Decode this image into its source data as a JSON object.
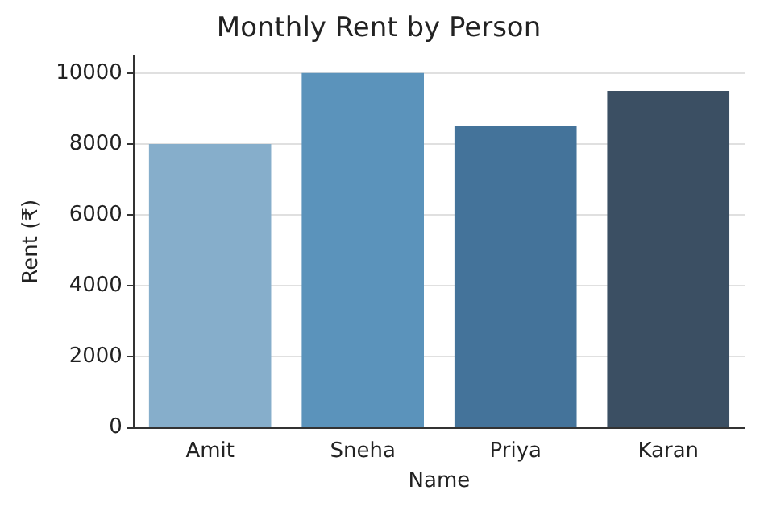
{
  "chart_data": {
    "type": "bar",
    "title": "Monthly Rent by Person",
    "xlabel": "Name",
    "ylabel": "Rent (₹)",
    "categories": [
      "Amit",
      "Sneha",
      "Priya",
      "Karan"
    ],
    "values": [
      8000,
      10000,
      8500,
      9500
    ],
    "colors": [
      "#86aecb",
      "#5b93bb",
      "#44739a",
      "#3b4f63"
    ],
    "ylim": [
      0,
      10500
    ],
    "yticks": [
      0,
      2000,
      4000,
      6000,
      8000,
      10000
    ],
    "grid": "y",
    "legend": false
  }
}
